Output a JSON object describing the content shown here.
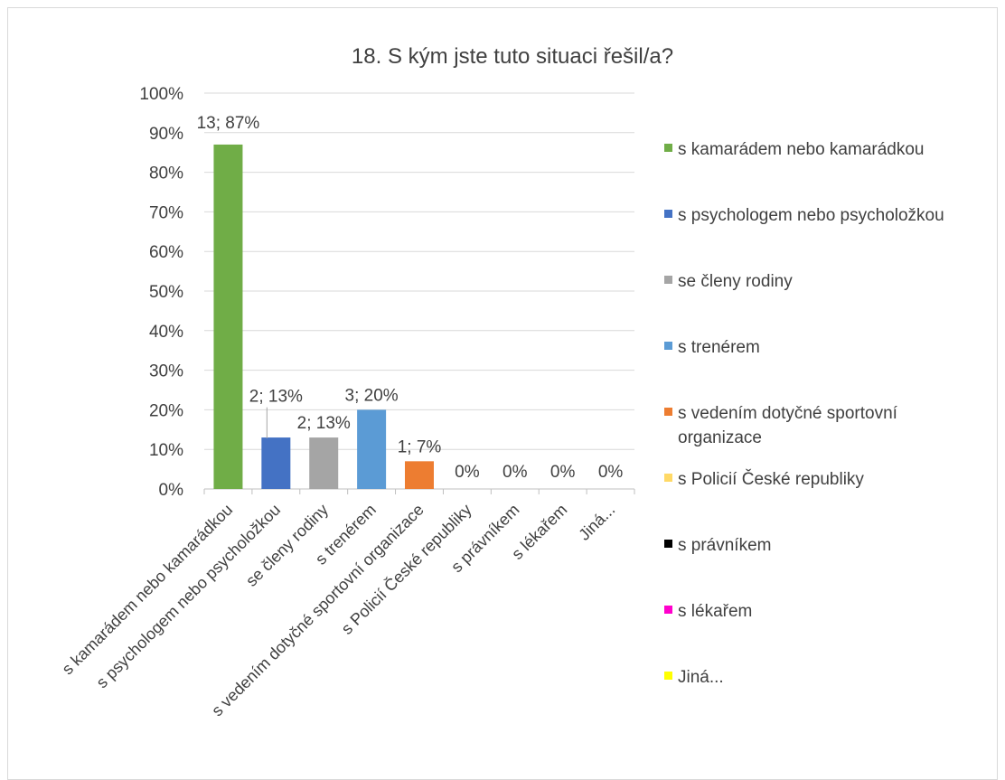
{
  "chart_data": {
    "type": "bar",
    "title": "18. S kým jste tuto situaci řešil/a?",
    "categories": [
      "s kamarádem nebo kamarádkou",
      "s psychologem nebo psycholožkou",
      "se členy rodiny",
      "s trenérem",
      "s vedením dotyčné sportovní organizace",
      "s Policií České republiky",
      "s právníkem",
      "s lékařem",
      "Jiná..."
    ],
    "legend_labels": [
      [
        "s kamarádem nebo kamarádkou"
      ],
      [
        "s psychologem nebo psycholožkou"
      ],
      [
        "se členy rodiny"
      ],
      [
        "s trenérem"
      ],
      [
        "s vedením dotyčné sportovní",
        "organizace"
      ],
      [
        "s Policií České republiky"
      ],
      [
        "s právníkem"
      ],
      [
        "s lékařem"
      ],
      [
        "Jiná..."
      ]
    ],
    "counts": [
      13,
      2,
      2,
      3,
      1,
      0,
      0,
      0,
      0
    ],
    "values": [
      87,
      13,
      13,
      20,
      7,
      0,
      0,
      0,
      0
    ],
    "data_labels": [
      "13; 87%",
      "2; 13%",
      "2; 13%",
      "3; 20%",
      "1; 7%",
      "0%",
      "0%",
      "0%",
      "0%"
    ],
    "colors": [
      "#70ad47",
      "#4472c4",
      "#a5a5a5",
      "#5b9bd5",
      "#ed7d31",
      "#ffd966",
      "#000000",
      "#ff00cc",
      "#ffff00"
    ],
    "yticks": [
      "0%",
      "10%",
      "20%",
      "30%",
      "40%",
      "50%",
      "60%",
      "70%",
      "80%",
      "90%",
      "100%"
    ],
    "ylim": [
      0,
      100
    ],
    "grid": true,
    "legend_position": "right",
    "xlabel": "",
    "ylabel": ""
  }
}
